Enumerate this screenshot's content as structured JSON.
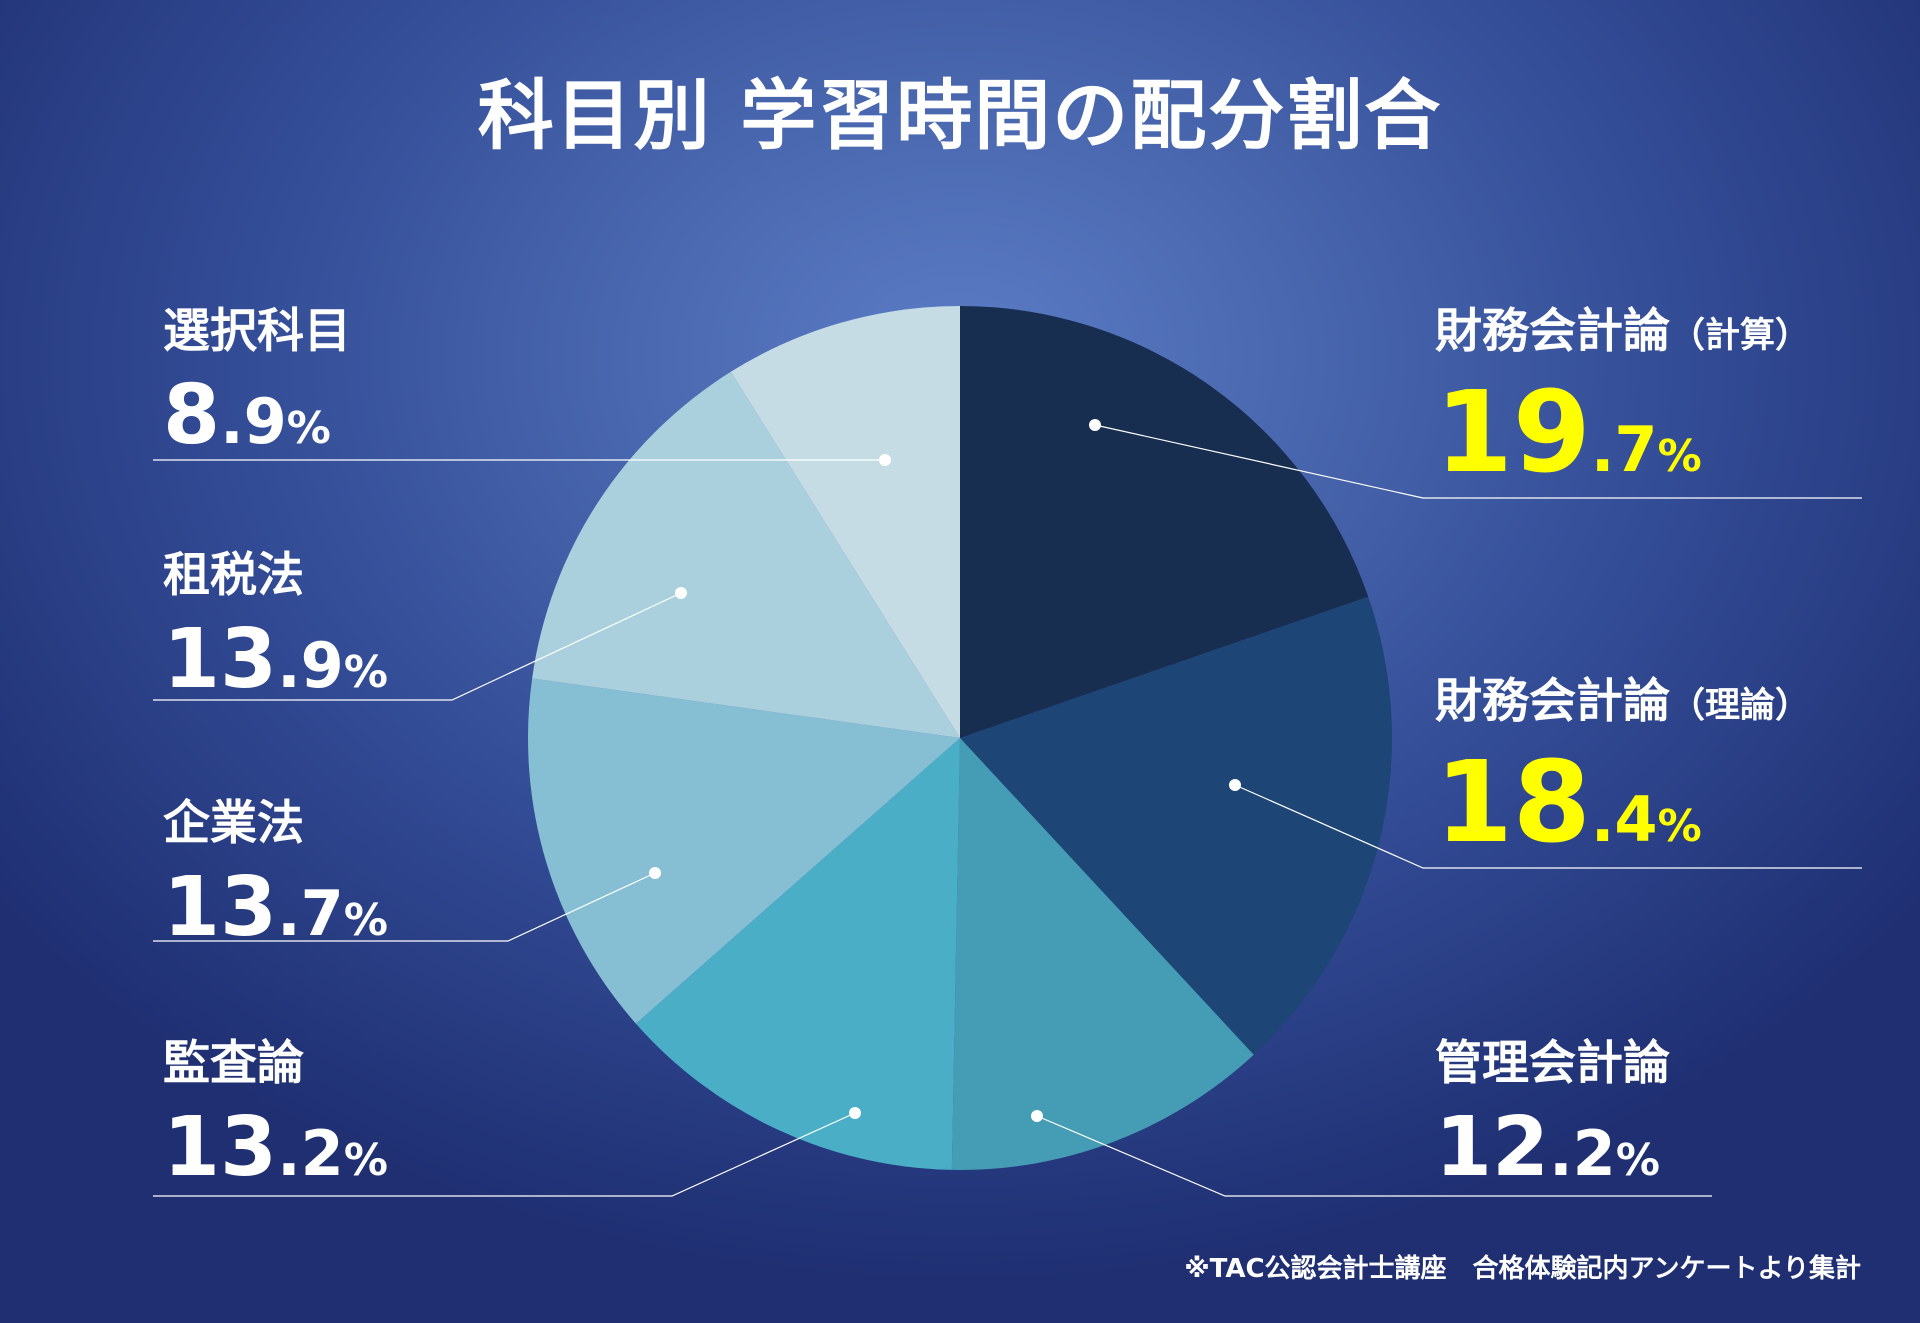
{
  "chart_data": {
    "type": "pie",
    "title": "科目別 学習時間の配分割合",
    "unit": "%",
    "slices": [
      {
        "name": "財務会計論（計算）",
        "name_main": "財務会計論",
        "name_sub": "（計算）",
        "value": 19.7,
        "int_label": "19",
        "dec_label": ".7",
        "color": "#172e50",
        "highlight": true
      },
      {
        "name": "財務会計論（理論）",
        "name_main": "財務会計論",
        "name_sub": "（理論）",
        "value": 18.4,
        "int_label": "18",
        "dec_label": ".4",
        "color": "#1d4575",
        "highlight": true
      },
      {
        "name": "管理会計論",
        "name_main": "管理会計論",
        "name_sub": "",
        "value": 12.2,
        "int_label": "12",
        "dec_label": ".2",
        "color": "#449db4",
        "highlight": false
      },
      {
        "name": "監査論",
        "name_main": "監査論",
        "name_sub": "",
        "value": 13.2,
        "int_label": "13",
        "dec_label": ".2",
        "color": "#4aaec6",
        "highlight": false
      },
      {
        "name": "企業法",
        "name_main": "企業法",
        "name_sub": "",
        "value": 13.7,
        "int_label": "13",
        "dec_label": ".7",
        "color": "#86bfd3",
        "highlight": false
      },
      {
        "name": "租税法",
        "name_main": "租税法",
        "name_sub": "",
        "value": 13.9,
        "int_label": "13",
        "dec_label": ".9",
        "color": "#aad0dd",
        "highlight": false
      },
      {
        "name": "選択科目",
        "name_main": "選択科目",
        "name_sub": "",
        "value": 8.9,
        "int_label": "8",
        "dec_label": ".9",
        "color": "#c5dce5",
        "highlight": false
      }
    ],
    "start": "12 o'clock",
    "direction": "clockwise",
    "legend": "none",
    "label_color": "#ffffff",
    "highlight_color": "#ffff00",
    "footnote": "※TAC公認会計士講座　合格体験記内アンケートより集計"
  }
}
